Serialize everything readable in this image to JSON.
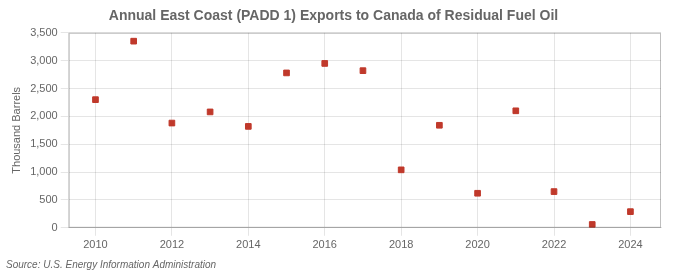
{
  "chart_data": {
    "type": "scatter",
    "title": "Annual East Coast (PADD 1) Exports to Canada of Residual Fuel Oil",
    "y_label": "Thousand Barrels",
    "annotations": [
      "Source: U.S. Energy Information Administration"
    ],
    "x": [
      2010,
      2011,
      2012,
      2013,
      2014,
      2015,
      2016,
      2017,
      2018,
      2019,
      2020,
      2021,
      2022,
      2023,
      2024
    ],
    "values": [
      2300,
      3350,
      1880,
      2080,
      1820,
      2780,
      2950,
      2820,
      1040,
      1840,
      620,
      2100,
      650,
      60,
      290
    ],
    "color": "#c0392b",
    "marker": "square",
    "xlim": [
      2009.3,
      2024.8
    ],
    "xticks": [
      2010,
      2012,
      2014,
      2016,
      2018,
      2020,
      2022,
      2024
    ],
    "ylim": [
      0,
      3500
    ],
    "yticks": [
      0,
      500,
      {
        "value": 1000,
        "label": "1,000"
      },
      {
        "value": 1500,
        "label": "1,500"
      },
      {
        "value": 2000,
        "label": "2,000"
      },
      {
        "value": 2500,
        "label": "2,500"
      },
      {
        "value": 3000,
        "label": "3,000"
      },
      {
        "value": 3500,
        "label": "3,500"
      }
    ],
    "grid": true
  }
}
